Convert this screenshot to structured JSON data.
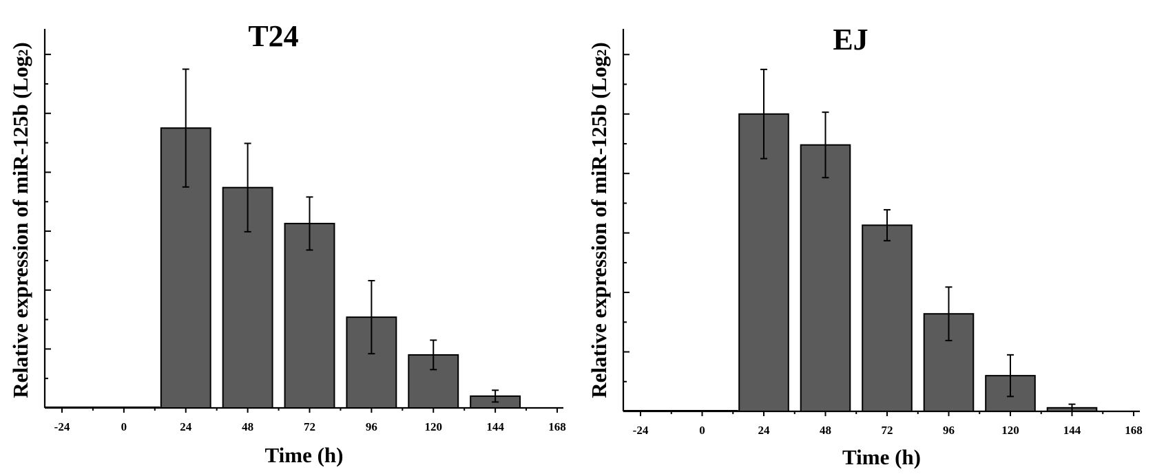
{
  "chart_data": [
    {
      "type": "bar",
      "title": "T24",
      "xlabel": "Time (h)",
      "ylabel": "Relative expression of miR-125b (Log",
      "ylabel_sub": "2",
      "ylabel_close": ")",
      "x_ticks": [
        "-24",
        "0",
        "24",
        "48",
        "72",
        "96",
        "120",
        "144",
        "168"
      ],
      "xlim": [
        -24,
        168
      ],
      "ylim": [
        0,
        6.2
      ],
      "color": "#5b5b5b",
      "bars": [
        {
          "x": 24,
          "value": 4.75,
          "error": 1.0
        },
        {
          "x": 48,
          "value": 3.74,
          "error": 0.75
        },
        {
          "x": 72,
          "value": 3.13,
          "error": 0.45
        },
        {
          "x": 96,
          "value": 1.54,
          "error": 0.62
        },
        {
          "x": 120,
          "value": 0.9,
          "error": 0.25
        },
        {
          "x": 144,
          "value": 0.2,
          "error": 0.1
        }
      ]
    },
    {
      "type": "bar",
      "title": "EJ",
      "xlabel": "Time (h)",
      "ylabel": "Relative expression of miR-125b (Log",
      "ylabel_sub": "2",
      "ylabel_close": ")",
      "x_ticks": [
        "-24",
        "0",
        "24",
        "48",
        "72",
        "96",
        "120",
        "144",
        "168"
      ],
      "xlim": [
        -24,
        168
      ],
      "ylim": [
        0,
        6.2
      ],
      "color": "#5b5b5b",
      "bars": [
        {
          "x": 24,
          "value": 5.0,
          "error": 0.75
        },
        {
          "x": 48,
          "value": 4.48,
          "error": 0.55
        },
        {
          "x": 72,
          "value": 3.13,
          "error": 0.26
        },
        {
          "x": 96,
          "value": 1.64,
          "error": 0.45
        },
        {
          "x": 120,
          "value": 0.6,
          "error": 0.35
        },
        {
          "x": 144,
          "value": 0.06,
          "error": 0.06
        }
      ]
    }
  ]
}
